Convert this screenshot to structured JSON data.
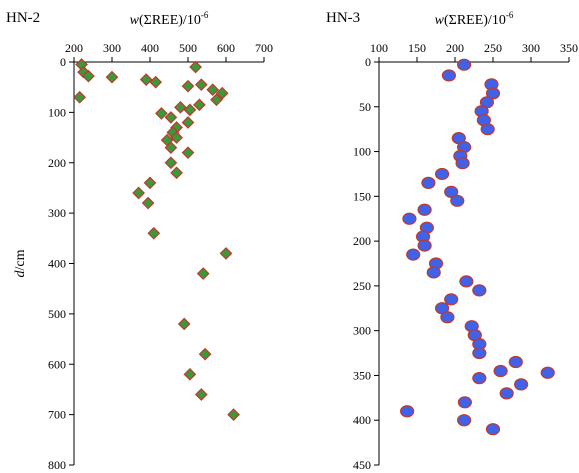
{
  "chart_data": [
    {
      "type": "scatter",
      "panel_label": "HN-2",
      "xlabel": "w(ΣREE)/10⁻⁶",
      "xlabel_parts": [
        "w",
        "(ΣREE)/10",
        "-6"
      ],
      "ylabel": "d/cm",
      "ylabel_parts": [
        "d",
        "/cm"
      ],
      "xlim": [
        200,
        700
      ],
      "ylim": [
        0,
        800
      ],
      "y_inverted": true,
      "x_axis_position": "top",
      "xticks": [
        200,
        300,
        400,
        500,
        600,
        700
      ],
      "yticks": [
        0,
        100,
        200,
        300,
        400,
        500,
        600,
        700,
        800
      ],
      "marker": {
        "shape": "diamond",
        "fill": "#3a9a3a",
        "stroke": "#c0392b"
      },
      "points": [
        {
          "x": 220,
          "y": 5
        },
        {
          "x": 225,
          "y": 20
        },
        {
          "x": 238,
          "y": 28
        },
        {
          "x": 300,
          "y": 30
        },
        {
          "x": 215,
          "y": 70
        },
        {
          "x": 520,
          "y": 10
        },
        {
          "x": 390,
          "y": 35
        },
        {
          "x": 415,
          "y": 40
        },
        {
          "x": 500,
          "y": 48
        },
        {
          "x": 535,
          "y": 45
        },
        {
          "x": 565,
          "y": 55
        },
        {
          "x": 590,
          "y": 62
        },
        {
          "x": 575,
          "y": 75
        },
        {
          "x": 480,
          "y": 90
        },
        {
          "x": 505,
          "y": 95
        },
        {
          "x": 530,
          "y": 85
        },
        {
          "x": 430,
          "y": 102
        },
        {
          "x": 455,
          "y": 110
        },
        {
          "x": 500,
          "y": 120
        },
        {
          "x": 470,
          "y": 130
        },
        {
          "x": 460,
          "y": 140
        },
        {
          "x": 445,
          "y": 155
        },
        {
          "x": 470,
          "y": 150
        },
        {
          "x": 455,
          "y": 170
        },
        {
          "x": 500,
          "y": 180
        },
        {
          "x": 455,
          "y": 200
        },
        {
          "x": 470,
          "y": 220
        },
        {
          "x": 400,
          "y": 240
        },
        {
          "x": 370,
          "y": 260
        },
        {
          "x": 395,
          "y": 280
        },
        {
          "x": 410,
          "y": 340
        },
        {
          "x": 600,
          "y": 380
        },
        {
          "x": 540,
          "y": 420
        },
        {
          "x": 490,
          "y": 520
        },
        {
          "x": 545,
          "y": 580
        },
        {
          "x": 505,
          "y": 620
        },
        {
          "x": 535,
          "y": 660
        },
        {
          "x": 620,
          "y": 700
        }
      ]
    },
    {
      "type": "scatter",
      "panel_label": "HN-3",
      "xlabel": "w(ΣREE)/10⁻⁶",
      "xlabel_parts": [
        "w",
        "(ΣREE)/10",
        "-6"
      ],
      "xlim": [
        100,
        350
      ],
      "ylim": [
        0,
        450
      ],
      "y_inverted": true,
      "x_axis_position": "top",
      "xticks": [
        100,
        150,
        200,
        250,
        300,
        350
      ],
      "yticks": [
        0,
        50,
        100,
        150,
        200,
        250,
        300,
        350,
        400,
        450
      ],
      "marker": {
        "shape": "circle",
        "fill": "#3f62e8",
        "stroke": "#c0392b"
      },
      "points": [
        {
          "x": 212,
          "y": 3
        },
        {
          "x": 192,
          "y": 15
        },
        {
          "x": 248,
          "y": 25
        },
        {
          "x": 250,
          "y": 35
        },
        {
          "x": 242,
          "y": 45
        },
        {
          "x": 235,
          "y": 55
        },
        {
          "x": 238,
          "y": 65
        },
        {
          "x": 243,
          "y": 75
        },
        {
          "x": 205,
          "y": 85
        },
        {
          "x": 212,
          "y": 95
        },
        {
          "x": 207,
          "y": 105
        },
        {
          "x": 210,
          "y": 113
        },
        {
          "x": 183,
          "y": 125
        },
        {
          "x": 165,
          "y": 135
        },
        {
          "x": 195,
          "y": 145
        },
        {
          "x": 203,
          "y": 155
        },
        {
          "x": 160,
          "y": 165
        },
        {
          "x": 140,
          "y": 175
        },
        {
          "x": 163,
          "y": 185
        },
        {
          "x": 158,
          "y": 195
        },
        {
          "x": 160,
          "y": 205
        },
        {
          "x": 145,
          "y": 215
        },
        {
          "x": 175,
          "y": 225
        },
        {
          "x": 172,
          "y": 235
        },
        {
          "x": 215,
          "y": 245
        },
        {
          "x": 232,
          "y": 255
        },
        {
          "x": 195,
          "y": 265
        },
        {
          "x": 183,
          "y": 275
        },
        {
          "x": 190,
          "y": 285
        },
        {
          "x": 222,
          "y": 295
        },
        {
          "x": 226,
          "y": 305
        },
        {
          "x": 232,
          "y": 315
        },
        {
          "x": 232,
          "y": 325
        },
        {
          "x": 280,
          "y": 335
        },
        {
          "x": 260,
          "y": 345
        },
        {
          "x": 322,
          "y": 347
        },
        {
          "x": 232,
          "y": 353
        },
        {
          "x": 287,
          "y": 360
        },
        {
          "x": 268,
          "y": 370
        },
        {
          "x": 213,
          "y": 380
        },
        {
          "x": 137,
          "y": 390
        },
        {
          "x": 212,
          "y": 400
        },
        {
          "x": 250,
          "y": 410
        }
      ]
    }
  ]
}
